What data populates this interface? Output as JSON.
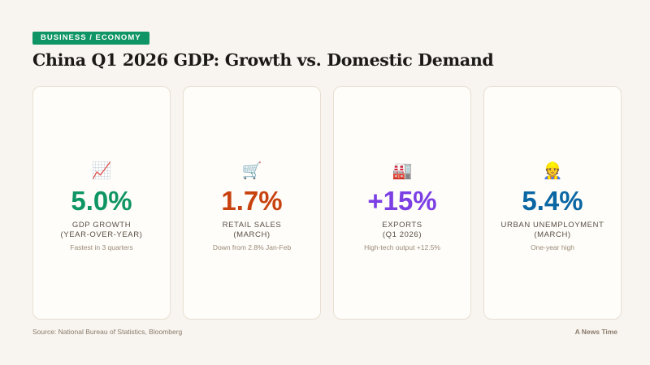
{
  "tag": "BUSINESS / ECONOMY",
  "title": "China Q1 2026 GDP: Growth vs. Domestic Demand",
  "cards": [
    {
      "icon": "📈",
      "icon_name": "chart-increasing-icon",
      "value": "5.0%",
      "color": "#0f9565",
      "label": "GDP GROWTH\n(YEAR-OVER-YEAR)",
      "note": "Fastest in 3 quarters"
    },
    {
      "icon": "🛒",
      "icon_name": "shopping-cart-icon",
      "value": "1.7%",
      "color": "#c8420f",
      "label": "RETAIL SALES\n(MARCH)",
      "note": "Down from 2.8% Jan-Feb"
    },
    {
      "icon": "🏭",
      "icon_name": "factory-icon",
      "value": "+15%",
      "color": "#7b3fe4",
      "label": "EXPORTS\n(Q1 2026)",
      "note": "High-tech output +12.5%"
    },
    {
      "icon": "👷",
      "icon_name": "construction-worker-icon",
      "value": "5.4%",
      "color": "#0a67a3",
      "label": "URBAN UNEMPLOYMENT\n(MARCH)",
      "note": "One-year high"
    }
  ],
  "source": "Source: National Bureau of Statistics, Bloomberg",
  "brand": "A News Time"
}
